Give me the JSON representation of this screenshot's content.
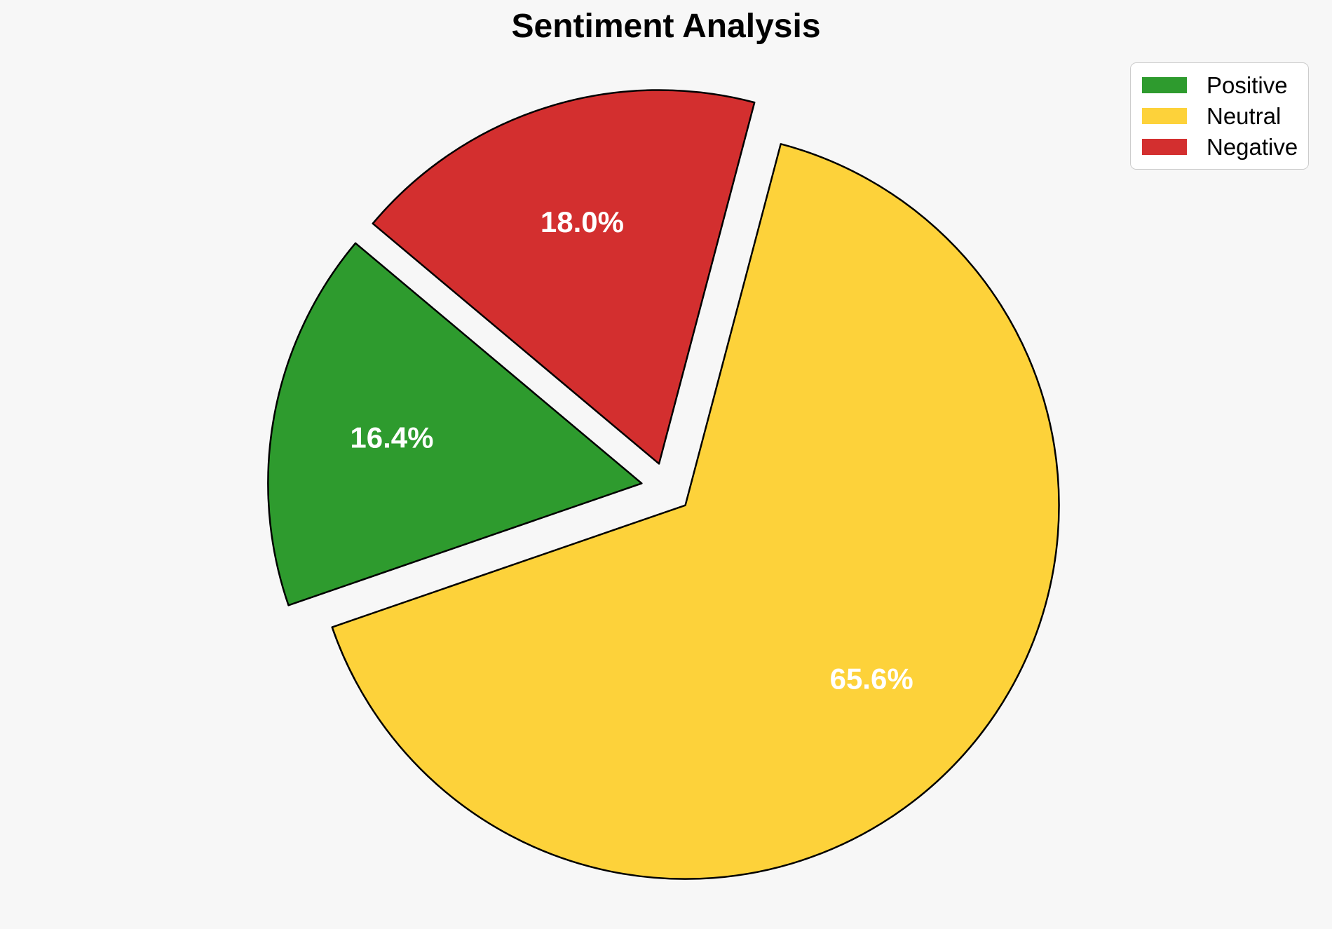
{
  "page": {
    "background_color": "#f7f7f7"
  },
  "chart_data": {
    "type": "pie",
    "title": "Sentiment Analysis",
    "slices": [
      {
        "label": "Positive",
        "value": 16.4,
        "pct_text": "16.4%",
        "color": "#2e9b2e"
      },
      {
        "label": "Neutral",
        "value": 65.6,
        "pct_text": "65.6%",
        "color": "#fdd23a"
      },
      {
        "label": "Negative",
        "value": 18.0,
        "pct_text": "18.0%",
        "color": "#d32f2f"
      }
    ],
    "start_angle": 140,
    "counterclock": true,
    "explode": 0.068,
    "pct_distance": 0.68,
    "pct_label_color": "#ffffff",
    "edge_color": "#000000",
    "legend_position": "upper right",
    "legend_entries": [
      "Positive",
      "Neutral",
      "Negative"
    ]
  }
}
